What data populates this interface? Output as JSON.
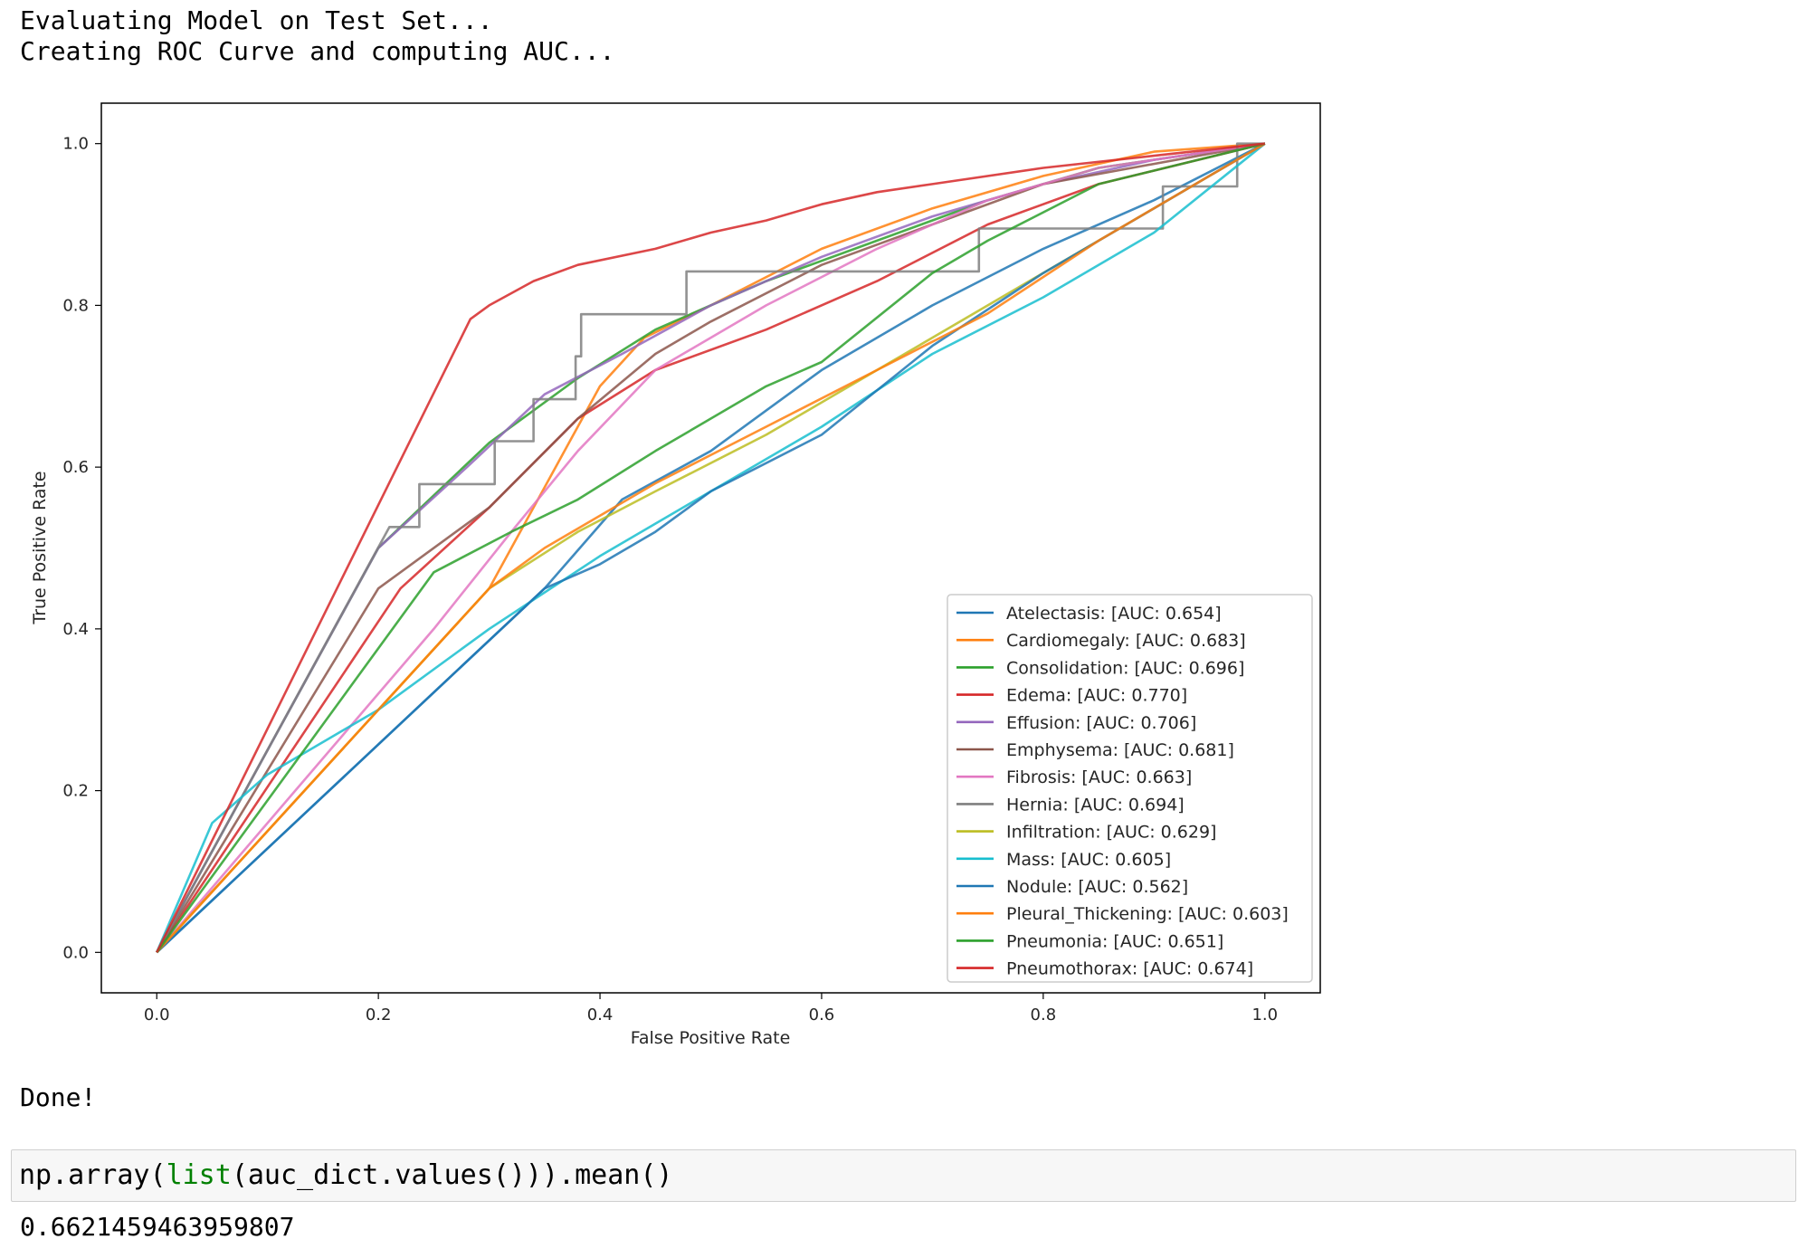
{
  "output": {
    "line1": "Evaluating Model on Test Set...",
    "line2": "Creating ROC Curve and computing AUC...",
    "done": "Done!"
  },
  "code_cell": {
    "prefix": "np.array(",
    "builtin": "list",
    "suffix": "(auc_dict.values())).mean()"
  },
  "result": "0.6621459463959807",
  "colors": {
    "Atelectasis": "#1f77b4",
    "Cardiomegaly": "#ff7f0e",
    "Consolidation": "#2ca02c",
    "Edema": "#d62728",
    "Effusion": "#9467bd",
    "Emphysema": "#8c564b",
    "Fibrosis": "#e377c2",
    "Hernia": "#7f7f7f",
    "Infiltration": "#bcbd22",
    "Mass": "#17becf",
    "Nodule": "#1f77b4",
    "Pleural_Thickening": "#ff7f0e",
    "Pneumonia": "#2ca02c",
    "Pneumothorax": "#d62728"
  },
  "chart_data": {
    "type": "line",
    "xlabel": "False Positive Rate",
    "ylabel": "True Positive Rate",
    "xlim": [
      -0.05,
      1.05
    ],
    "ylim": [
      -0.05,
      1.05
    ],
    "xticks": [
      "0.0",
      "0.2",
      "0.4",
      "0.6",
      "0.8",
      "1.0"
    ],
    "yticks": [
      "0.0",
      "0.2",
      "0.4",
      "0.6",
      "0.8",
      "1.0"
    ],
    "legend_position": "lower right",
    "grid": false,
    "series": [
      {
        "name": "Atelectasis: [AUC: 0.654]",
        "color": "#1f77b4",
        "points": [
          [
            0,
            0
          ],
          [
            0.35,
            0.45
          ],
          [
            0.42,
            0.56
          ],
          [
            0.5,
            0.62
          ],
          [
            0.55,
            0.67
          ],
          [
            0.6,
            0.72
          ],
          [
            0.7,
            0.8
          ],
          [
            0.8,
            0.87
          ],
          [
            0.9,
            0.93
          ],
          [
            1,
            1
          ]
        ]
      },
      {
        "name": "Cardiomegaly: [AUC: 0.683]",
        "color": "#ff7f0e",
        "points": [
          [
            0,
            0
          ],
          [
            0.3,
            0.45
          ],
          [
            0.4,
            0.7
          ],
          [
            0.44,
            0.76
          ],
          [
            0.5,
            0.8
          ],
          [
            0.6,
            0.87
          ],
          [
            0.7,
            0.92
          ],
          [
            0.8,
            0.96
          ],
          [
            0.9,
            0.99
          ],
          [
            1,
            1
          ]
        ]
      },
      {
        "name": "Consolidation: [AUC: 0.696]",
        "color": "#2ca02c",
        "points": [
          [
            0,
            0
          ],
          [
            0.2,
            0.5
          ],
          [
            0.3,
            0.63
          ],
          [
            0.38,
            0.71
          ],
          [
            0.45,
            0.77
          ],
          [
            0.55,
            0.83
          ],
          [
            0.65,
            0.88
          ],
          [
            0.75,
            0.93
          ],
          [
            0.85,
            0.97
          ],
          [
            1,
            1
          ]
        ]
      },
      {
        "name": "Edema: [AUC: 0.770]",
        "color": "#d62728",
        "points": [
          [
            0,
            0
          ],
          [
            0.22,
            0.45
          ],
          [
            0.3,
            0.55
          ],
          [
            0.38,
            0.66
          ],
          [
            0.45,
            0.72
          ],
          [
            0.55,
            0.77
          ],
          [
            0.65,
            0.83
          ],
          [
            0.75,
            0.9
          ],
          [
            0.85,
            0.95
          ],
          [
            1,
            1
          ]
        ]
      },
      {
        "name": "Effusion: [AUC: 0.706]",
        "color": "#9467bd",
        "points": [
          [
            0,
            0
          ],
          [
            0.2,
            0.5
          ],
          [
            0.28,
            0.6
          ],
          [
            0.35,
            0.69
          ],
          [
            0.42,
            0.74
          ],
          [
            0.5,
            0.8
          ],
          [
            0.6,
            0.86
          ],
          [
            0.7,
            0.91
          ],
          [
            0.8,
            0.95
          ],
          [
            0.9,
            0.98
          ],
          [
            1,
            1
          ]
        ]
      },
      {
        "name": "Emphysema: [AUC: 0.681]",
        "color": "#8c564b",
        "points": [
          [
            0,
            0
          ],
          [
            0.2,
            0.45
          ],
          [
            0.3,
            0.55
          ],
          [
            0.38,
            0.66
          ],
          [
            0.45,
            0.74
          ],
          [
            0.5,
            0.78
          ],
          [
            0.6,
            0.85
          ],
          [
            0.7,
            0.9
          ],
          [
            0.8,
            0.95
          ],
          [
            1,
            1
          ]
        ]
      },
      {
        "name": "Fibrosis: [AUC: 0.663]",
        "color": "#e377c2",
        "points": [
          [
            0,
            0
          ],
          [
            0.25,
            0.4
          ],
          [
            0.32,
            0.52
          ],
          [
            0.38,
            0.62
          ],
          [
            0.45,
            0.72
          ],
          [
            0.55,
            0.8
          ],
          [
            0.65,
            0.87
          ],
          [
            0.75,
            0.93
          ],
          [
            0.85,
            0.97
          ],
          [
            1,
            1
          ]
        ]
      },
      {
        "name": "Hernia: [AUC: 0.694]",
        "color": "#7f7f7f",
        "points": [
          [
            0,
            0
          ],
          [
            0.21,
            0.526
          ],
          [
            0.237,
            0.526
          ],
          [
            0.237,
            0.579
          ],
          [
            0.305,
            0.579
          ],
          [
            0.305,
            0.632
          ],
          [
            0.34,
            0.632
          ],
          [
            0.34,
            0.684
          ],
          [
            0.378,
            0.684
          ],
          [
            0.378,
            0.737
          ],
          [
            0.383,
            0.737
          ],
          [
            0.383,
            0.789
          ],
          [
            0.478,
            0.789
          ],
          [
            0.478,
            0.842
          ],
          [
            0.742,
            0.842
          ],
          [
            0.742,
            0.895
          ],
          [
            0.908,
            0.895
          ],
          [
            0.908,
            0.947
          ],
          [
            0.975,
            0.947
          ],
          [
            0.975,
            1
          ],
          [
            1,
            1
          ]
        ]
      },
      {
        "name": "Infiltration: [AUC: 0.629]",
        "color": "#bcbd22",
        "points": [
          [
            0,
            0
          ],
          [
            0.3,
            0.45
          ],
          [
            0.38,
            0.52
          ],
          [
            0.45,
            0.57
          ],
          [
            0.55,
            0.64
          ],
          [
            0.65,
            0.72
          ],
          [
            0.75,
            0.8
          ],
          [
            0.85,
            0.88
          ],
          [
            0.95,
            0.96
          ],
          [
            1,
            1
          ]
        ]
      },
      {
        "name": "Mass: [AUC: 0.605]",
        "color": "#17becf",
        "points": [
          [
            0,
            0
          ],
          [
            0.05,
            0.16
          ],
          [
            0.1,
            0.22
          ],
          [
            0.2,
            0.3
          ],
          [
            0.3,
            0.4
          ],
          [
            0.4,
            0.49
          ],
          [
            0.5,
            0.57
          ],
          [
            0.6,
            0.65
          ],
          [
            0.7,
            0.74
          ],
          [
            0.8,
            0.81
          ],
          [
            0.9,
            0.89
          ],
          [
            1,
            1
          ]
        ]
      },
      {
        "name": "Nodule: [AUC: 0.562]",
        "color": "#1f77b4",
        "points": [
          [
            0,
            0
          ],
          [
            0.35,
            0.45
          ],
          [
            0.4,
            0.48
          ],
          [
            0.45,
            0.52
          ],
          [
            0.5,
            0.57
          ],
          [
            0.6,
            0.64
          ],
          [
            0.7,
            0.75
          ],
          [
            0.8,
            0.84
          ],
          [
            0.9,
            0.92
          ],
          [
            0.95,
            0.96
          ],
          [
            1,
            1
          ]
        ]
      },
      {
        "name": "Pleural_Thickening: [AUC: 0.603]",
        "color": "#ff7f0e",
        "points": [
          [
            0,
            0
          ],
          [
            0.3,
            0.45
          ],
          [
            0.35,
            0.5
          ],
          [
            0.45,
            0.58
          ],
          [
            0.55,
            0.65
          ],
          [
            0.65,
            0.72
          ],
          [
            0.75,
            0.79
          ],
          [
            0.85,
            0.88
          ],
          [
            0.95,
            0.96
          ],
          [
            1,
            1
          ]
        ]
      },
      {
        "name": "Pneumonia: [AUC: 0.651]",
        "color": "#2ca02c",
        "points": [
          [
            0,
            0
          ],
          [
            0.25,
            0.47
          ],
          [
            0.32,
            0.52
          ],
          [
            0.38,
            0.56
          ],
          [
            0.45,
            0.62
          ],
          [
            0.55,
            0.7
          ],
          [
            0.6,
            0.73
          ],
          [
            0.7,
            0.84
          ],
          [
            0.75,
            0.88
          ],
          [
            0.85,
            0.95
          ],
          [
            1,
            1
          ]
        ]
      },
      {
        "name": "Pneumothorax: [AUC: 0.674]",
        "color": "#d62728",
        "points": [
          [
            0,
            0
          ],
          [
            0.283,
            0.783
          ],
          [
            0.3,
            0.8
          ],
          [
            0.34,
            0.83
          ],
          [
            0.38,
            0.85
          ],
          [
            0.45,
            0.87
          ],
          [
            0.5,
            0.89
          ],
          [
            0.55,
            0.905
          ],
          [
            0.6,
            0.925
          ],
          [
            0.65,
            0.94
          ],
          [
            0.7,
            0.95
          ],
          [
            0.8,
            0.97
          ],
          [
            0.9,
            0.985
          ],
          [
            1,
            1
          ]
        ]
      }
    ]
  }
}
